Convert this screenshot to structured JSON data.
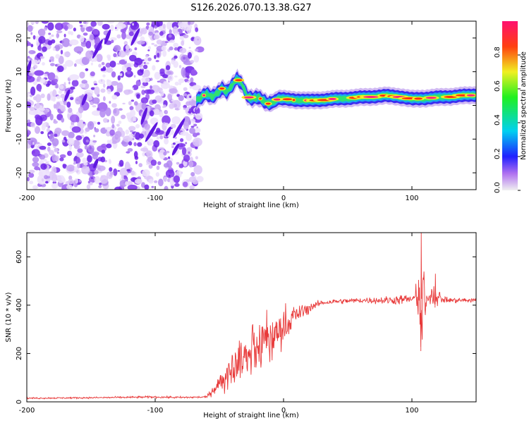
{
  "title": "S126.2026.070.13.38.G27",
  "colors": {
    "snr_line": "#e83a3a",
    "noise": "#7a2ff0",
    "axis": "#000000"
  },
  "chart_data": [
    {
      "type": "heatmap",
      "name": "radio-occultation-spectrogram",
      "xlabel": "Height of straight line (km)",
      "ylabel": "Frequency (Hz)",
      "xlim": [
        -200,
        150
      ],
      "ylim": [
        -25,
        25
      ],
      "xticks": [
        -200,
        -100,
        0,
        100
      ],
      "yticks": [
        -20,
        -10,
        0,
        10,
        20
      ],
      "noise_region_x": [
        -200,
        -65
      ],
      "ridge": {
        "x": [
          -68,
          -64,
          -60,
          -56,
          -52,
          -48,
          -44,
          -40,
          -36,
          -32,
          -28,
          -24,
          -20,
          -16,
          -12,
          -8,
          -4,
          0,
          10,
          20,
          30,
          40,
          50,
          60,
          70,
          80,
          90,
          100,
          110,
          120,
          130,
          140,
          150
        ],
        "y": [
          1.5,
          2.5,
          3.5,
          2.5,
          3.5,
          5,
          4,
          6,
          8,
          6,
          2.5,
          2,
          2.5,
          1.5,
          0.5,
          1,
          2,
          2,
          1.5,
          1.5,
          1.5,
          2,
          2,
          2.5,
          2.5,
          3,
          2.5,
          2,
          2,
          2.5,
          2.5,
          3,
          3
        ]
      },
      "colorbar": {
        "label": "Normalized spectral amplitude",
        "range": [
          0,
          1
        ],
        "ticks": [
          "0.0",
          "0.2",
          "0.4",
          "0.6",
          "0.8"
        ]
      }
    },
    {
      "type": "line",
      "name": "snr-profile",
      "xlabel": "Height of straight line (km)",
      "ylabel": "SNR (10 * v/v)",
      "xlim": [
        -200,
        150
      ],
      "ylim": [
        0,
        700
      ],
      "xticks": [
        -200,
        -100,
        0,
        100
      ],
      "yticks": [
        0,
        200,
        400,
        600
      ],
      "series": [
        {
          "name": "SNR",
          "x": [
            -200,
            -150,
            -100,
            -80,
            -60,
            -48,
            -40,
            -30,
            -20,
            -10,
            0,
            10,
            20,
            30,
            40,
            60,
            80,
            100,
            105,
            110,
            120,
            130,
            150
          ],
          "y": [
            15,
            17,
            20,
            18,
            20,
            90,
            150,
            190,
            230,
            270,
            320,
            360,
            390,
            410,
            415,
            420,
            420,
            425,
            430,
            420,
            425,
            420,
            420
          ],
          "noise": [
            3,
            3,
            4,
            4,
            4,
            40,
            55,
            70,
            80,
            75,
            55,
            30,
            15,
            10,
            10,
            10,
            15,
            20,
            25,
            15,
            15,
            10,
            10
          ],
          "spikes": [
            {
              "x": 107,
              "peak": 700,
              "trough": 210
            },
            {
              "x": 118,
              "peak": 530,
              "trough": 390
            }
          ]
        }
      ]
    }
  ]
}
